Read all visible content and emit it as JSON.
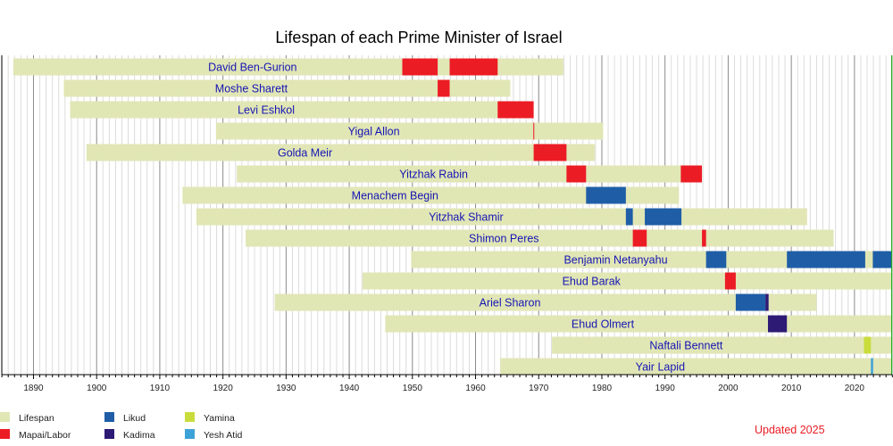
{
  "chart_data": {
    "type": "timeline",
    "title": "Lifespan of each Prime Minister of Israel",
    "xlim": [
      1884.7,
      2026.0
    ],
    "x_ticks": [
      1890,
      1900,
      1910,
      1920,
      1930,
      1940,
      1950,
      1960,
      1970,
      1980,
      1990,
      2000,
      2010,
      2020
    ],
    "grid": "vertical, yearly (darker every 10 years)",
    "current_year_marker": 2025.9,
    "colors": {
      "Lifespan": "#e1e6b5",
      "Mapai/Labor": "#ec1c24",
      "Likud": "#1f5ea6",
      "Kadima": "#2d1a74",
      "Yamina": "#c9dc3c",
      "Yesh Atid": "#3da2d8",
      "marker": "#22aa22"
    },
    "legend": [
      "Lifespan",
      "Mapai/Labor",
      "Likud",
      "Kadima",
      "Yamina",
      "Yesh Atid"
    ],
    "legend_placement": "bottom-left",
    "annotation": "Updated 2025",
    "people": [
      {
        "name": "David Ben-Gurion",
        "born": 1886.8,
        "died": 1973.9,
        "terms": [
          {
            "party": "Mapai/Labor",
            "start": 1948.4,
            "end": 1954.0
          },
          {
            "party": "Mapai/Labor",
            "start": 1955.9,
            "end": 1963.5
          }
        ]
      },
      {
        "name": "Moshe Sharett",
        "born": 1894.8,
        "died": 1965.5,
        "terms": [
          {
            "party": "Mapai/Labor",
            "start": 1954.0,
            "end": 1955.9
          }
        ]
      },
      {
        "name": "Levi Eshkol",
        "born": 1895.8,
        "died": 1969.2,
        "terms": [
          {
            "party": "Mapai/Labor",
            "start": 1963.5,
            "end": 1969.2
          }
        ]
      },
      {
        "name": "Yigal Allon",
        "born": 1918.9,
        "died": 1980.2,
        "terms": [
          {
            "party": "Mapai/Labor",
            "start": 1969.15,
            "end": 1969.25
          }
        ]
      },
      {
        "name": "Golda Meir",
        "born": 1898.4,
        "died": 1978.9,
        "terms": [
          {
            "party": "Mapai/Labor",
            "start": 1969.2,
            "end": 1974.4
          }
        ]
      },
      {
        "name": "Yitzhak Rabin",
        "born": 1922.2,
        "died": 1995.85,
        "terms": [
          {
            "party": "Mapai/Labor",
            "start": 1974.4,
            "end": 1977.5
          },
          {
            "party": "Mapai/Labor",
            "start": 1992.5,
            "end": 1995.85
          }
        ]
      },
      {
        "name": "Menachem Begin",
        "born": 1913.6,
        "died": 1992.2,
        "terms": [
          {
            "party": "Likud",
            "start": 1977.5,
            "end": 1983.8
          }
        ]
      },
      {
        "name": "Yitzhak Shamir",
        "born": 1915.8,
        "died": 2012.5,
        "terms": [
          {
            "party": "Likud",
            "start": 1983.8,
            "end": 1984.9
          },
          {
            "party": "Likud",
            "start": 1986.8,
            "end": 1992.6
          }
        ]
      },
      {
        "name": "Shimon Peres",
        "born": 1923.6,
        "died": 2016.7,
        "terms": [
          {
            "party": "Mapai/Labor",
            "start": 1984.9,
            "end": 1987.1
          },
          {
            "party": "Mapai/Labor",
            "start": 1995.85,
            "end": 1996.5
          }
        ]
      },
      {
        "name": "Benjamin Netanyahu",
        "born": 1949.8,
        "died": null,
        "terms": [
          {
            "party": "Likud",
            "start": 1996.5,
            "end": 1999.7
          },
          {
            "party": "Likud",
            "start": 2009.3,
            "end": 2021.7
          },
          {
            "party": "Likud",
            "start": 2022.9,
            "end": 2025.9
          }
        ]
      },
      {
        "name": "Ehud Barak",
        "born": 1942.1,
        "died": null,
        "terms": [
          {
            "party": "Mapai/Labor",
            "start": 1999.5,
            "end": 2001.2
          }
        ]
      },
      {
        "name": "Ariel Sharon",
        "born": 1928.2,
        "died": 2014.0,
        "terms": [
          {
            "party": "Likud",
            "start": 2001.2,
            "end": 2005.9
          },
          {
            "party": "Kadima",
            "start": 2005.9,
            "end": 2006.4
          }
        ]
      },
      {
        "name": "Ehud Olmert",
        "born": 1945.7,
        "died": null,
        "terms": [
          {
            "party": "Kadima",
            "start": 2006.3,
            "end": 2009.3
          }
        ]
      },
      {
        "name": "Naftali Bennett",
        "born": 1972.1,
        "died": null,
        "terms": [
          {
            "party": "Yamina",
            "start": 2021.5,
            "end": 2022.6
          }
        ]
      },
      {
        "name": "Yair Lapid",
        "born": 1963.9,
        "died": null,
        "terms": [
          {
            "party": "Yesh Atid",
            "start": 2022.6,
            "end": 2022.95
          }
        ]
      }
    ]
  }
}
